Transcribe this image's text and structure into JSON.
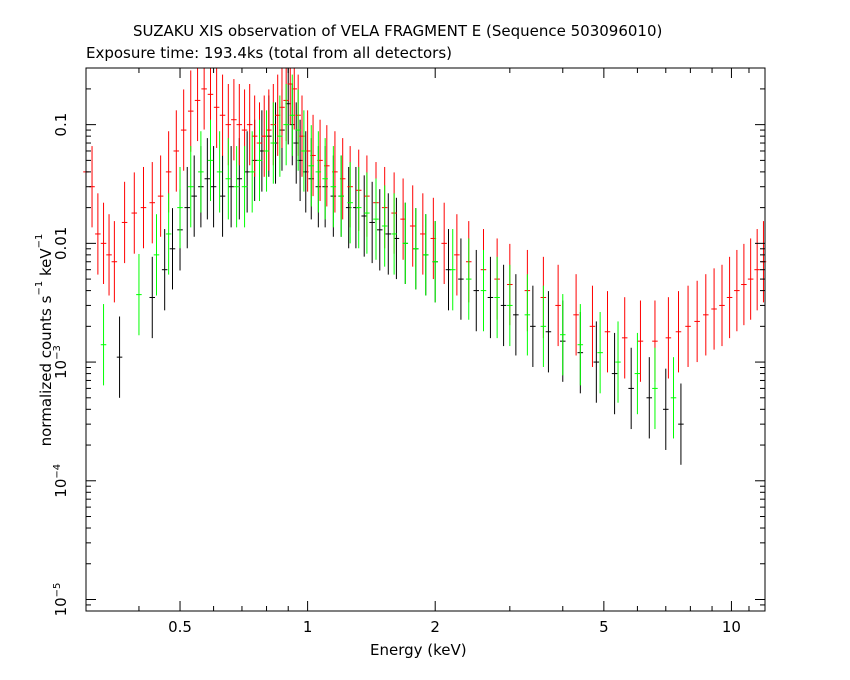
{
  "chart_data": {
    "type": "scatter",
    "title": "SUZAKU XIS observation of VELA FRAGMENT E (Sequence 503096010)",
    "subtitle": "Exposure time: 193.4ks (total from all detectors)",
    "xlabel": "Energy (keV)",
    "ylabel": {
      "prefix": "normalized counts s",
      "sup1": "−1",
      "mid": " keV",
      "sup2": "−1"
    },
    "x_scale": "log",
    "y_scale": "log",
    "xlim": [
      0.3,
      12
    ],
    "ylim": [
      8e-06,
      0.3
    ],
    "x_ticks": [
      {
        "value": 0.5,
        "label": "0.5"
      },
      {
        "value": 1,
        "label": "1"
      },
      {
        "value": 2,
        "label": "2"
      },
      {
        "value": 5,
        "label": "5"
      },
      {
        "value": 10,
        "label": "10"
      }
    ],
    "y_ticks": [
      {
        "value": 0.1,
        "label": "0.1"
      },
      {
        "value": 0.01,
        "label": "0.01"
      },
      {
        "value": 0.001,
        "label": "10",
        "sup": "−3"
      },
      {
        "value": 0.0001,
        "label": "10",
        "sup": "−4"
      },
      {
        "value": 1e-05,
        "label": "10",
        "sup": "−5"
      }
    ],
    "grid": false,
    "series": [
      {
        "color": "#000000",
        "x": [
          0.36,
          0.43,
          0.46,
          0.48,
          0.5,
          0.52,
          0.54,
          0.56,
          0.58,
          0.6,
          0.63,
          0.66,
          0.69,
          0.72,
          0.75,
          0.78,
          0.81,
          0.84,
          0.87,
          0.9,
          0.92,
          0.94,
          0.96,
          0.99,
          1.02,
          1.06,
          1.1,
          1.15,
          1.2,
          1.25,
          1.3,
          1.36,
          1.42,
          1.48,
          1.55,
          1.62,
          1.7,
          1.8,
          1.9,
          2.0,
          2.15,
          2.3,
          2.5,
          2.7,
          2.9,
          3.1,
          3.4,
          3.7,
          4.0,
          4.4,
          4.8,
          5.3,
          5.8,
          6.4,
          7.0,
          7.6
        ],
        "y": [
          0.0011,
          0.0035,
          0.006,
          0.009,
          0.013,
          0.02,
          0.025,
          0.03,
          0.035,
          0.03,
          0.025,
          0.03,
          0.035,
          0.04,
          0.05,
          0.06,
          0.08,
          0.07,
          0.09,
          0.15,
          0.1,
          0.07,
          0.05,
          0.04,
          0.035,
          0.03,
          0.03,
          0.025,
          0.025,
          0.02,
          0.02,
          0.017,
          0.015,
          0.013,
          0.012,
          0.011,
          0.01,
          0.009,
          0.008,
          0.007,
          0.006,
          0.005,
          0.004,
          0.0035,
          0.003,
          0.0025,
          0.002,
          0.0018,
          0.0015,
          0.0012,
          0.001,
          0.0008,
          0.0006,
          0.0005,
          0.0004,
          0.0003
        ]
      },
      {
        "color": "#ff0000",
        "x": [
          0.3,
          0.31,
          0.32,
          0.33,
          0.34,
          0.35,
          0.37,
          0.39,
          0.41,
          0.43,
          0.45,
          0.47,
          0.49,
          0.51,
          0.53,
          0.55,
          0.57,
          0.59,
          0.61,
          0.63,
          0.65,
          0.67,
          0.69,
          0.71,
          0.73,
          0.75,
          0.77,
          0.79,
          0.81,
          0.83,
          0.85,
          0.87,
          0.89,
          0.91,
          0.93,
          0.95,
          0.97,
          1.0,
          1.03,
          1.07,
          1.11,
          1.16,
          1.21,
          1.26,
          1.32,
          1.38,
          1.45,
          1.52,
          1.6,
          1.68,
          1.77,
          1.87,
          1.98,
          2.1,
          2.25,
          2.4,
          2.6,
          2.8,
          3.0,
          3.3,
          3.6,
          3.9,
          4.3,
          4.7,
          5.1,
          5.6,
          6.1,
          6.6,
          7.1,
          7.5,
          7.9,
          8.3,
          8.7,
          9.1,
          9.5,
          9.9,
          10.3,
          10.7,
          11.1,
          11.5,
          11.9
        ],
        "y": [
          0.04,
          0.03,
          0.012,
          0.01,
          0.008,
          0.007,
          0.015,
          0.018,
          0.02,
          0.022,
          0.025,
          0.04,
          0.06,
          0.09,
          0.13,
          0.16,
          0.2,
          0.18,
          0.14,
          0.12,
          0.1,
          0.11,
          0.1,
          0.09,
          0.1,
          0.08,
          0.07,
          0.08,
          0.09,
          0.1,
          0.12,
          0.14,
          0.16,
          0.22,
          0.2,
          0.12,
          0.08,
          0.06,
          0.055,
          0.05,
          0.045,
          0.04,
          0.035,
          0.03,
          0.028,
          0.025,
          0.022,
          0.02,
          0.018,
          0.016,
          0.014,
          0.012,
          0.011,
          0.01,
          0.008,
          0.007,
          0.006,
          0.005,
          0.0045,
          0.004,
          0.0035,
          0.003,
          0.0025,
          0.002,
          0.0018,
          0.0016,
          0.0015,
          0.0015,
          0.0016,
          0.0018,
          0.002,
          0.0022,
          0.0025,
          0.0028,
          0.003,
          0.0035,
          0.004,
          0.0045,
          0.005,
          0.006,
          0.007
        ]
      },
      {
        "color": "#00ff00",
        "x": [
          0.33,
          0.4,
          0.44,
          0.47,
          0.5,
          0.53,
          0.56,
          0.59,
          0.62,
          0.65,
          0.68,
          0.71,
          0.74,
          0.77,
          0.8,
          0.83,
          0.86,
          0.89,
          0.92,
          0.95,
          0.98,
          1.02,
          1.06,
          1.1,
          1.15,
          1.2,
          1.26,
          1.32,
          1.38,
          1.45,
          1.52,
          1.6,
          1.7,
          1.8,
          1.9,
          2.0,
          2.2,
          2.4,
          2.6,
          2.8,
          3.0,
          3.3,
          3.6,
          4.0,
          4.4,
          4.9,
          5.4,
          6.0,
          6.6,
          7.3
        ],
        "y": [
          0.0014,
          0.0037,
          0.008,
          0.012,
          0.02,
          0.03,
          0.04,
          0.05,
          0.04,
          0.035,
          0.03,
          0.03,
          0.04,
          0.05,
          0.06,
          0.07,
          0.08,
          0.1,
          0.12,
          0.09,
          0.06,
          0.045,
          0.04,
          0.035,
          0.03,
          0.025,
          0.022,
          0.02,
          0.018,
          0.016,
          0.014,
          0.012,
          0.01,
          0.009,
          0.008,
          0.007,
          0.006,
          0.005,
          0.004,
          0.0035,
          0.003,
          0.0025,
          0.002,
          0.0017,
          0.0014,
          0.0012,
          0.001,
          0.0008,
          0.0006,
          0.0005
        ]
      }
    ]
  }
}
